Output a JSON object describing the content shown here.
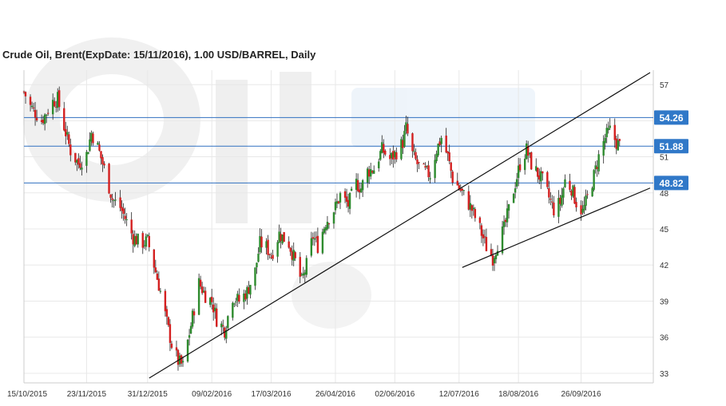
{
  "chart": {
    "title": "Crude Oil, Brent(ExpDate: 15/11/2016), 1.00 USD/BARREL, Daily"
  },
  "chart_data": {
    "type": "candlestick",
    "title": "Crude Oil, Brent(ExpDate: 15/11/2016), 1.00 USD/BARREL, Daily",
    "x_ticks": [
      "15/10/2015",
      "23/11/2015",
      "31/12/2015",
      "09/02/2016",
      "17/03/2016",
      "26/04/2016",
      "02/06/2016",
      "12/07/2016",
      "18/08/2016",
      "26/09/2016"
    ],
    "y_ticks": [
      33,
      36,
      39,
      42,
      45,
      48,
      51,
      54,
      57
    ],
    "ylim": [
      32.2,
      58.2
    ],
    "grid": true,
    "levels": [
      54.26,
      51.88,
      48.82
    ],
    "level_labels": [
      "54.26",
      "51.88",
      "48.82"
    ],
    "trendlines": [
      {
        "from": [
          "2016-01-01",
          32.6
        ],
        "to": [
          "2016-11-08",
          58.0
        ]
      },
      {
        "from": [
          "2016-07-14",
          41.8
        ],
        "to": [
          "2016-11-08",
          48.4
        ]
      }
    ],
    "colors": {
      "up": "#2e8b2e",
      "down": "#d42020",
      "levels": "#3070c0",
      "badge": "#3078c8",
      "trendline": "#111111",
      "grid": "#e8e8e8"
    },
    "watermark": "OilStat",
    "series": [
      {
        "d": "2015-10-15",
        "c": 56.4
      },
      {
        "d": "2015-10-19",
        "c": 55.2
      },
      {
        "d": "2015-10-26",
        "c": 54.0
      },
      {
        "d": "2015-11-02",
        "c": 55.6
      },
      {
        "d": "2015-11-05",
        "c": 55.8
      },
      {
        "d": "2015-11-09",
        "c": 53.5
      },
      {
        "d": "2015-11-13",
        "c": 51.5
      },
      {
        "d": "2015-11-18",
        "c": 50.4
      },
      {
        "d": "2015-11-23",
        "c": 51.2
      },
      {
        "d": "2015-11-26",
        "c": 53.0
      },
      {
        "d": "2015-11-30",
        "c": 51.8
      },
      {
        "d": "2015-12-04",
        "c": 50.0
      },
      {
        "d": "2015-12-09",
        "c": 47.5
      },
      {
        "d": "2015-12-14",
        "c": 46.8
      },
      {
        "d": "2015-12-18",
        "c": 45.6
      },
      {
        "d": "2015-12-22",
        "c": 44.3
      },
      {
        "d": "2015-12-27",
        "c": 43.8
      },
      {
        "d": "2015-12-31",
        "c": 44.0
      },
      {
        "d": "2016-01-04",
        "c": 42.0
      },
      {
        "d": "2016-01-08",
        "c": 39.8
      },
      {
        "d": "2016-01-12",
        "c": 37.2
      },
      {
        "d": "2016-01-15",
        "c": 35.4
      },
      {
        "d": "2016-01-19",
        "c": 34.0
      },
      {
        "d": "2016-01-22",
        "c": 33.6
      },
      {
        "d": "2016-01-27",
        "c": 37.0
      },
      {
        "d": "2016-02-01",
        "c": 40.5
      },
      {
        "d": "2016-02-05",
        "c": 39.5
      },
      {
        "d": "2016-02-09",
        "c": 39.0
      },
      {
        "d": "2016-02-12",
        "c": 37.5
      },
      {
        "d": "2016-02-17",
        "c": 36.6
      },
      {
        "d": "2016-02-22",
        "c": 39.4
      },
      {
        "d": "2016-02-26",
        "c": 39.0
      },
      {
        "d": "2016-03-02",
        "c": 39.8
      },
      {
        "d": "2016-03-07",
        "c": 41.5
      },
      {
        "d": "2016-03-10",
        "c": 43.8
      },
      {
        "d": "2016-03-14",
        "c": 43.5
      },
      {
        "d": "2016-03-17",
        "c": 42.8
      },
      {
        "d": "2016-03-22",
        "c": 44.6
      },
      {
        "d": "2016-03-28",
        "c": 43.8
      },
      {
        "d": "2016-04-01",
        "c": 42.3
      },
      {
        "d": "2016-04-05",
        "c": 40.6
      },
      {
        "d": "2016-04-08",
        "c": 42.0
      },
      {
        "d": "2016-04-12",
        "c": 44.4
      },
      {
        "d": "2016-04-15",
        "c": 43.6
      },
      {
        "d": "2016-04-20",
        "c": 45.6
      },
      {
        "d": "2016-04-26",
        "c": 46.8
      },
      {
        "d": "2016-04-29",
        "c": 47.8
      },
      {
        "d": "2016-05-04",
        "c": 47.0
      },
      {
        "d": "2016-05-09",
        "c": 48.8
      },
      {
        "d": "2016-05-12",
        "c": 48.4
      },
      {
        "d": "2016-05-16",
        "c": 49.8
      },
      {
        "d": "2016-05-20",
        "c": 50.0
      },
      {
        "d": "2016-05-25",
        "c": 51.6
      },
      {
        "d": "2016-05-30",
        "c": 50.8
      },
      {
        "d": "2016-06-02",
        "c": 51.2
      },
      {
        "d": "2016-06-07",
        "c": 52.2
      },
      {
        "d": "2016-06-09",
        "c": 53.4
      },
      {
        "d": "2016-06-13",
        "c": 51.2
      },
      {
        "d": "2016-06-16",
        "c": 50.4
      },
      {
        "d": "2016-06-20",
        "c": 49.8
      },
      {
        "d": "2016-06-24",
        "c": 49.5
      },
      {
        "d": "2016-06-28",
        "c": 51.6
      },
      {
        "d": "2016-07-01",
        "c": 52.6
      },
      {
        "d": "2016-07-05",
        "c": 51.0
      },
      {
        "d": "2016-07-08",
        "c": 49.2
      },
      {
        "d": "2016-07-12",
        "c": 48.4
      },
      {
        "d": "2016-07-15",
        "c": 47.8
      },
      {
        "d": "2016-07-20",
        "c": 46.6
      },
      {
        "d": "2016-07-25",
        "c": 45.0
      },
      {
        "d": "2016-07-29",
        "c": 43.5
      },
      {
        "d": "2016-08-02",
        "c": 42.6
      },
      {
        "d": "2016-08-05",
        "c": 43.8
      },
      {
        "d": "2016-08-09",
        "c": 45.0
      },
      {
        "d": "2016-08-12",
        "c": 46.6
      },
      {
        "d": "2016-08-16",
        "c": 48.8
      },
      {
        "d": "2016-08-19",
        "c": 50.4
      },
      {
        "d": "2016-08-23",
        "c": 51.6
      },
      {
        "d": "2016-08-26",
        "c": 50.4
      },
      {
        "d": "2016-08-30",
        "c": 49.6
      },
      {
        "d": "2016-09-02",
        "c": 49.0
      },
      {
        "d": "2016-09-06",
        "c": 47.6
      },
      {
        "d": "2016-09-09",
        "c": 46.6
      },
      {
        "d": "2016-09-13",
        "c": 47.2
      },
      {
        "d": "2016-09-16",
        "c": 49.0
      },
      {
        "d": "2016-09-20",
        "c": 48.4
      },
      {
        "d": "2016-09-23",
        "c": 47.2
      },
      {
        "d": "2016-09-27",
        "c": 46.4
      },
      {
        "d": "2016-09-30",
        "c": 47.6
      },
      {
        "d": "2016-10-04",
        "c": 49.4
      },
      {
        "d": "2016-10-07",
        "c": 51.0
      },
      {
        "d": "2016-10-11",
        "c": 52.6
      },
      {
        "d": "2016-10-14",
        "c": 53.2
      },
      {
        "d": "2016-10-18",
        "c": 52.2
      },
      {
        "d": "2016-10-21",
        "c": 51.8
      }
    ]
  }
}
